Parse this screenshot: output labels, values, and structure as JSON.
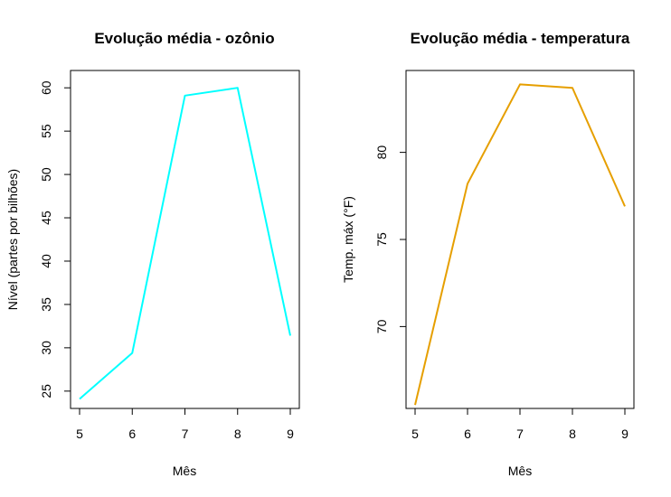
{
  "chart_data": [
    {
      "type": "line",
      "title": "Evolução média - ozônio",
      "xlabel": "Mês",
      "ylabel": "Nível (partes por bilhões)",
      "x": [
        5,
        6,
        7,
        8,
        9
      ],
      "xticks": [
        "5",
        "6",
        "7",
        "8",
        "9"
      ],
      "yticks": [
        "25",
        "30",
        "35",
        "40",
        "45",
        "50",
        "55",
        "60"
      ],
      "ylim": [
        23,
        62
      ],
      "series": [
        {
          "values": [
            24.1,
            29.4,
            59.1,
            60.0,
            31.4
          ],
          "color": "#00ffff"
        }
      ],
      "grid": false,
      "box": true
    },
    {
      "type": "line",
      "title": "Evolução média - temperatura",
      "xlabel": "Mês",
      "ylabel": "Temp. máx (°F)",
      "x": [
        5,
        6,
        7,
        8,
        9
      ],
      "xticks": [
        "5",
        "6",
        "7",
        "8",
        "9"
      ],
      "yticks": [
        "70",
        "75",
        "80"
      ],
      "ylim": [
        65.3,
        84.7
      ],
      "series": [
        {
          "values": [
            65.5,
            78.2,
            83.9,
            83.7,
            76.9
          ],
          "color": "#e69f00"
        }
      ],
      "grid": false,
      "box": true
    }
  ]
}
